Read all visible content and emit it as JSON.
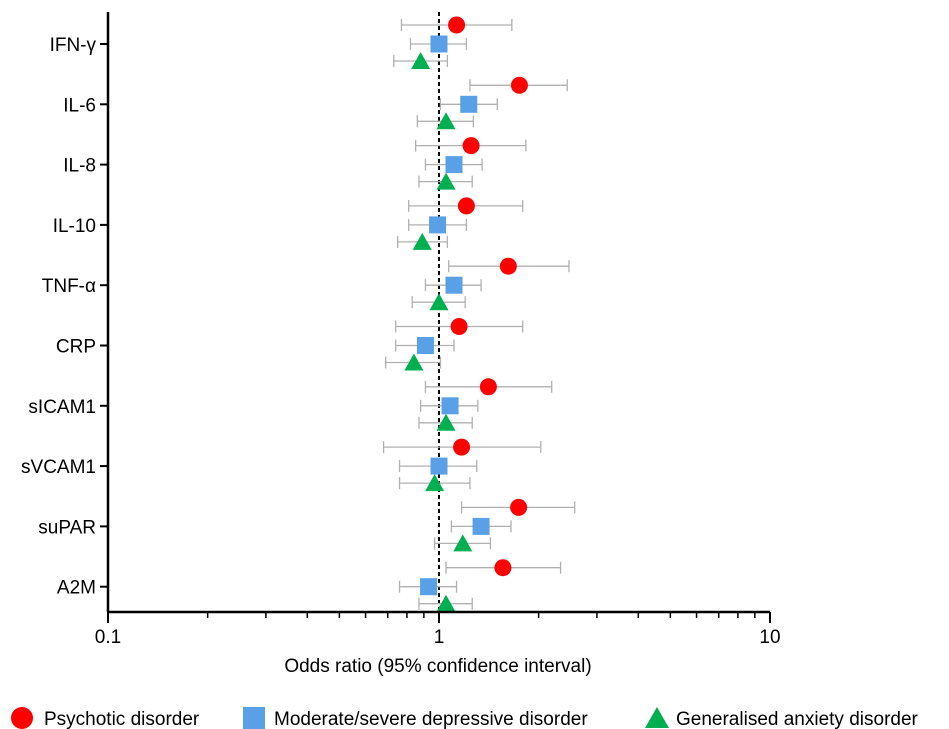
{
  "chart_data": {
    "type": "forest",
    "xlabel": "Odds ratio (95% confidence interval)",
    "ylabel": "",
    "xscale": "log",
    "xlim": [
      0.1,
      10
    ],
    "xticks": [
      {
        "value": 0.1,
        "label": "0.1"
      },
      {
        "value": 1,
        "label": "1"
      },
      {
        "value": 10,
        "label": "10"
      }
    ],
    "reference_line": 1,
    "categories": [
      "IFN-γ",
      "IL-6",
      "IL-8",
      "IL-10",
      "TNF-α",
      "CRP",
      "sICAM1",
      "sVCAM1",
      "suPAR",
      "A2M"
    ],
    "series": [
      {
        "name": "Psychotic disorder",
        "marker": "circle",
        "color": "#ff0000",
        "points": [
          {
            "or": 1.13,
            "lo": 0.77,
            "hi": 1.66
          },
          {
            "or": 1.75,
            "lo": 1.24,
            "hi": 2.44
          },
          {
            "or": 1.25,
            "lo": 0.85,
            "hi": 1.83
          },
          {
            "or": 1.21,
            "lo": 0.81,
            "hi": 1.79
          },
          {
            "or": 1.62,
            "lo": 1.07,
            "hi": 2.47
          },
          {
            "or": 1.15,
            "lo": 0.74,
            "hi": 1.79
          },
          {
            "or": 1.41,
            "lo": 0.91,
            "hi": 2.19
          },
          {
            "or": 1.17,
            "lo": 0.68,
            "hi": 2.03
          },
          {
            "or": 1.74,
            "lo": 1.17,
            "hi": 2.57
          },
          {
            "or": 1.56,
            "lo": 1.05,
            "hi": 2.33
          }
        ]
      },
      {
        "name": "Moderate/severe depressive disorder",
        "marker": "square",
        "color": "#5aa0e6",
        "points": [
          {
            "or": 1.0,
            "lo": 0.82,
            "hi": 1.21
          },
          {
            "or": 1.23,
            "lo": 1.01,
            "hi": 1.5
          },
          {
            "or": 1.11,
            "lo": 0.91,
            "hi": 1.35
          },
          {
            "or": 0.99,
            "lo": 0.81,
            "hi": 1.21
          },
          {
            "or": 1.11,
            "lo": 0.91,
            "hi": 1.34
          },
          {
            "or": 0.91,
            "lo": 0.74,
            "hi": 1.11
          },
          {
            "or": 1.08,
            "lo": 0.88,
            "hi": 1.31
          },
          {
            "or": 1.0,
            "lo": 0.76,
            "hi": 1.3
          },
          {
            "or": 1.34,
            "lo": 1.09,
            "hi": 1.65
          },
          {
            "or": 0.93,
            "lo": 0.76,
            "hi": 1.13
          }
        ]
      },
      {
        "name": "Generalised anxiety disorder",
        "marker": "triangle",
        "color": "#00b050",
        "points": [
          {
            "or": 0.88,
            "lo": 0.73,
            "hi": 1.06
          },
          {
            "or": 1.05,
            "lo": 0.86,
            "hi": 1.27
          },
          {
            "or": 1.05,
            "lo": 0.87,
            "hi": 1.26
          },
          {
            "or": 0.89,
            "lo": 0.75,
            "hi": 1.06
          },
          {
            "or": 1.0,
            "lo": 0.83,
            "hi": 1.2
          },
          {
            "or": 0.84,
            "lo": 0.69,
            "hi": 1.01
          },
          {
            "or": 1.05,
            "lo": 0.87,
            "hi": 1.26
          },
          {
            "or": 0.97,
            "lo": 0.76,
            "hi": 1.24
          },
          {
            "or": 1.18,
            "lo": 0.97,
            "hi": 1.43
          },
          {
            "or": 1.05,
            "lo": 0.87,
            "hi": 1.26
          }
        ]
      }
    ],
    "legend_position": "bottom"
  }
}
